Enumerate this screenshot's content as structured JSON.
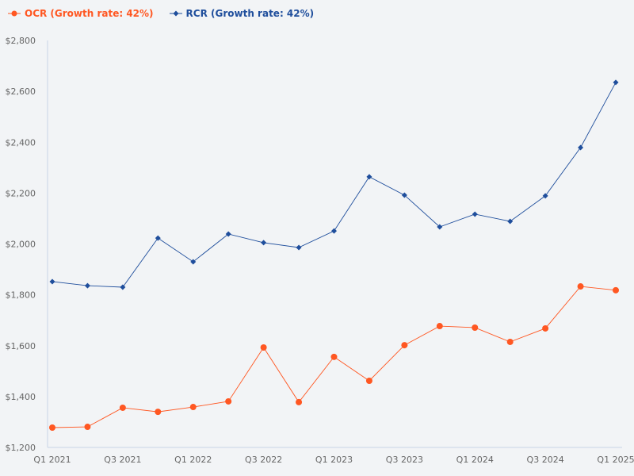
{
  "chart_data": {
    "type": "line",
    "title": "",
    "xlabel": "",
    "ylabel": "",
    "x": [
      "Q1 2021",
      "Q2 2021",
      "Q3 2021",
      "Q4 2021",
      "Q1 2022",
      "Q2 2022",
      "Q3 2022",
      "Q4 2022",
      "Q1 2023",
      "Q2 2023",
      "Q3 2023",
      "Q4 2023",
      "Q1 2024",
      "Q2 2024",
      "Q3 2024",
      "Q4 2024",
      "Q1 2025"
    ],
    "x_tick_labels": [
      "Q1 2021",
      "Q3 2021",
      "Q1 2022",
      "Q3 2022",
      "Q1 2023",
      "Q3 2023",
      "Q1 2024",
      "Q3 2024",
      "Q1 2025"
    ],
    "ylim": [
      1200,
      2800
    ],
    "y_ticks": [
      1200,
      1400,
      1600,
      1800,
      2000,
      2200,
      2400,
      2600,
      2800
    ],
    "y_tick_labels": [
      "$1,200",
      "$1,400",
      "$1,600",
      "$1,800",
      "$2,000",
      "$2,200",
      "$2,400",
      "$2,600",
      "$2,800"
    ],
    "grid": false,
    "legend_position": "top-left",
    "series": [
      {
        "name": "OCR (Growth rate: 42%)",
        "color": "#ff5722",
        "marker": "circle",
        "values": [
          1278,
          1281,
          1356,
          1340,
          1359,
          1381,
          1593,
          1378,
          1556,
          1462,
          1602,
          1677,
          1671,
          1615,
          1668,
          1833,
          1818
        ]
      },
      {
        "name": "RCR (Growth rate: 42%)",
        "color": "#1f4e9c",
        "marker": "diamond",
        "values": [
          1852,
          1836,
          1830,
          2023,
          1930,
          2039,
          2005,
          1986,
          2051,
          2264,
          2192,
          2067,
          2117,
          2089,
          2189,
          2379,
          2635
        ]
      }
    ]
  }
}
